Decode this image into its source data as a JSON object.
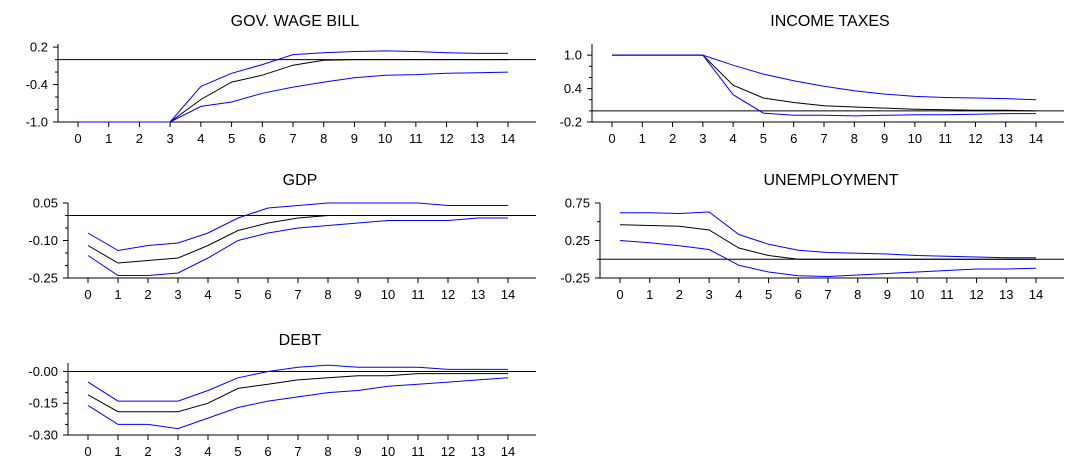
{
  "chart_data": [
    {
      "type": "line",
      "title": "GOV. WAGE BILL",
      "x": [
        0,
        1,
        2,
        3,
        4,
        5,
        6,
        7,
        8,
        9,
        10,
        11,
        12,
        13,
        14
      ],
      "ylim": [
        -1.0,
        0.25
      ],
      "yticks": [
        0.2,
        -0.4,
        -1.0
      ],
      "ytick_labels": [
        "0.2",
        "-0.4",
        "-1.0"
      ],
      "minor_yticks": [
        0.0,
        -0.2,
        -0.6,
        -0.8
      ],
      "zero_line": 0.0,
      "series": [
        {
          "color": "#0000ff",
          "values": [
            -1.0,
            -1.0,
            -1.0,
            -1.0,
            -0.43,
            -0.22,
            -0.08,
            0.08,
            0.11,
            0.13,
            0.14,
            0.13,
            0.11,
            0.1,
            0.1
          ]
        },
        {
          "color": "#000000",
          "values": [
            -1.0,
            -1.0,
            -1.0,
            -1.0,
            -0.64,
            -0.36,
            -0.25,
            -0.09,
            -0.01,
            0.0,
            0.0,
            0.0,
            0.0,
            0.0,
            0.0
          ]
        },
        {
          "color": "#0000ff",
          "values": [
            -1.0,
            -1.0,
            -1.0,
            -1.0,
            -0.75,
            -0.68,
            -0.54,
            -0.44,
            -0.36,
            -0.29,
            -0.25,
            -0.24,
            -0.22,
            -0.21,
            -0.2
          ]
        }
      ]
    },
    {
      "type": "line",
      "title": "INCOME TAXES",
      "x": [
        0,
        1,
        2,
        3,
        4,
        5,
        6,
        7,
        8,
        9,
        10,
        11,
        12,
        13,
        14
      ],
      "ylim": [
        -0.2,
        1.2
      ],
      "yticks": [
        1.0,
        0.4,
        -0.2
      ],
      "ytick_labels": [
        "1.0",
        "0.4",
        "-0.2"
      ],
      "minor_yticks": [
        0.8,
        0.6,
        0.2,
        0.0
      ],
      "zero_line": 0.0,
      "series": [
        {
          "color": "#0000ff",
          "values": [
            1.0,
            1.0,
            1.0,
            1.0,
            0.82,
            0.66,
            0.54,
            0.44,
            0.36,
            0.3,
            0.26,
            0.24,
            0.23,
            0.22,
            0.2
          ]
        },
        {
          "color": "#000000",
          "values": [
            1.0,
            1.0,
            1.0,
            1.0,
            0.46,
            0.23,
            0.15,
            0.09,
            0.07,
            0.05,
            0.03,
            0.02,
            0.01,
            0.01,
            0.0
          ]
        },
        {
          "color": "#0000ff",
          "values": [
            1.0,
            1.0,
            1.0,
            1.0,
            0.29,
            -0.04,
            -0.08,
            -0.08,
            -0.09,
            -0.08,
            -0.07,
            -0.07,
            -0.06,
            -0.05,
            -0.05
          ]
        }
      ]
    },
    {
      "type": "line",
      "title": "GDP",
      "x": [
        0,
        1,
        2,
        3,
        4,
        5,
        6,
        7,
        8,
        9,
        10,
        11,
        12,
        13,
        14
      ],
      "ylim": [
        -0.25,
        0.05
      ],
      "yticks": [
        0.05,
        -0.1,
        -0.25
      ],
      "ytick_labels": [
        "0.05",
        "-0.10",
        "-0.25"
      ],
      "minor_yticks": [
        0.0,
        -0.05,
        -0.15,
        -0.2
      ],
      "zero_line": 0.0,
      "series": [
        {
          "color": "#0000ff",
          "values": [
            -0.07,
            -0.14,
            -0.12,
            -0.11,
            -0.07,
            -0.01,
            0.03,
            0.04,
            0.05,
            0.05,
            0.05,
            0.05,
            0.04,
            0.04,
            0.04
          ]
        },
        {
          "color": "#000000",
          "values": [
            -0.12,
            -0.19,
            -0.18,
            -0.17,
            -0.12,
            -0.06,
            -0.03,
            -0.01,
            0.0,
            0.0,
            0.0,
            0.0,
            0.0,
            0.0,
            0.0
          ]
        },
        {
          "color": "#0000ff",
          "values": [
            -0.16,
            -0.24,
            -0.24,
            -0.23,
            -0.17,
            -0.1,
            -0.07,
            -0.05,
            -0.04,
            -0.03,
            -0.02,
            -0.02,
            -0.02,
            -0.01,
            -0.01
          ]
        }
      ]
    },
    {
      "type": "line",
      "title": "UNEMPLOYMENT",
      "x": [
        0,
        1,
        2,
        3,
        4,
        5,
        6,
        7,
        8,
        9,
        10,
        11,
        12,
        13,
        14
      ],
      "ylim": [
        -0.25,
        0.75
      ],
      "yticks": [
        0.75,
        0.25,
        -0.25
      ],
      "ytick_labels": [
        "0.75",
        "0.25",
        "-0.25"
      ],
      "minor_yticks": [
        0.5,
        0.0
      ],
      "zero_line": 0.0,
      "series": [
        {
          "color": "#0000ff",
          "values": [
            0.62,
            0.62,
            0.61,
            0.63,
            0.33,
            0.2,
            0.12,
            0.09,
            0.08,
            0.07,
            0.05,
            0.04,
            0.03,
            0.02,
            0.02
          ]
        },
        {
          "color": "#000000",
          "values": [
            0.46,
            0.45,
            0.44,
            0.39,
            0.15,
            0.05,
            0.0,
            0.0,
            0.0,
            0.0,
            0.0,
            0.0,
            0.0,
            0.0,
            0.0
          ]
        },
        {
          "color": "#0000ff",
          "values": [
            0.25,
            0.22,
            0.18,
            0.13,
            -0.08,
            -0.17,
            -0.22,
            -0.23,
            -0.21,
            -0.19,
            -0.17,
            -0.15,
            -0.13,
            -0.13,
            -0.12
          ]
        }
      ]
    },
    {
      "type": "line",
      "title": "DEBT",
      "x": [
        0,
        1,
        2,
        3,
        4,
        5,
        6,
        7,
        8,
        9,
        10,
        11,
        12,
        13,
        14
      ],
      "ylim": [
        -0.3,
        0.04
      ],
      "yticks": [
        0.0,
        -0.15,
        -0.3
      ],
      "ytick_labels": [
        "-0.00",
        "-0.15",
        "-0.30"
      ],
      "minor_yticks": [
        -0.05,
        -0.1,
        -0.2,
        -0.25
      ],
      "zero_line": 0.0,
      "series": [
        {
          "color": "#0000ff",
          "values": [
            -0.05,
            -0.14,
            -0.14,
            -0.14,
            -0.09,
            -0.03,
            0.0,
            0.02,
            0.03,
            0.02,
            0.02,
            0.02,
            0.01,
            0.01,
            0.01
          ]
        },
        {
          "color": "#000000",
          "values": [
            -0.11,
            -0.19,
            -0.19,
            -0.19,
            -0.15,
            -0.08,
            -0.06,
            -0.04,
            -0.03,
            -0.02,
            -0.02,
            -0.01,
            -0.01,
            -0.01,
            -0.01
          ]
        },
        {
          "color": "#0000ff",
          "values": [
            -0.16,
            -0.25,
            -0.25,
            -0.27,
            -0.22,
            -0.17,
            -0.14,
            -0.12,
            -0.1,
            -0.09,
            -0.07,
            -0.06,
            -0.05,
            -0.04,
            -0.03
          ]
        }
      ]
    }
  ]
}
